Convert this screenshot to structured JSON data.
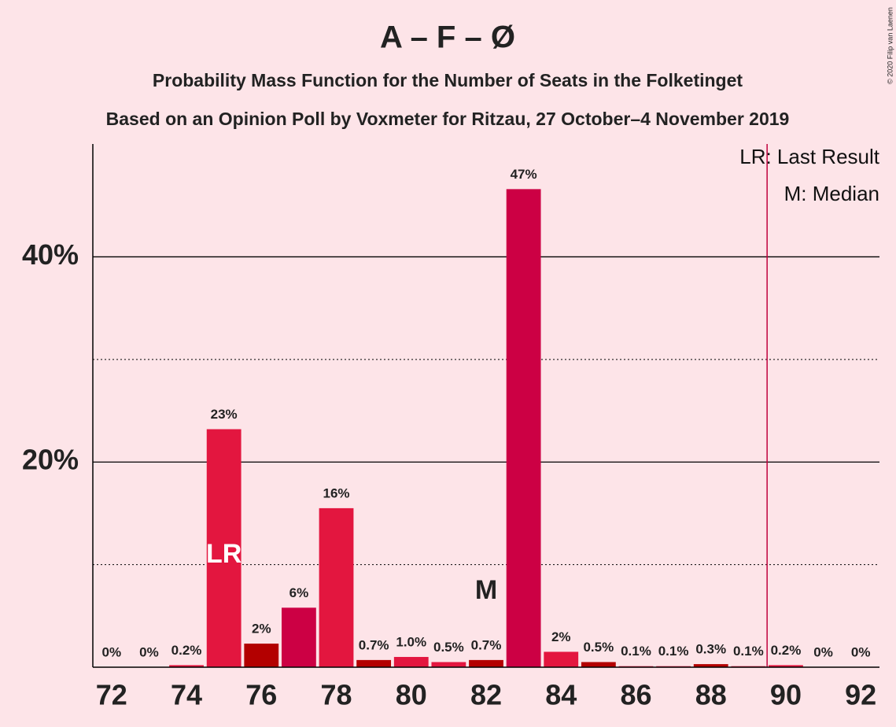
{
  "chart_data": {
    "type": "bar",
    "title": "A – F – Ø",
    "subtitle": "Probability Mass Function for the Number of Seats in the Folketinget",
    "subtitle2": "Based on an Opinion Poll by Voxmeter for Ritzau, 27 October–4 November 2019",
    "copyright": "© 2020 Filip van Laenen",
    "x": [
      72,
      73,
      74,
      75,
      76,
      77,
      78,
      79,
      80,
      81,
      82,
      83,
      84,
      85,
      86,
      87,
      88,
      89,
      90,
      91,
      92
    ],
    "values": [
      0,
      0,
      0.2,
      23.2,
      2.3,
      5.8,
      15.5,
      0.7,
      1.0,
      0.5,
      0.7,
      46.6,
      1.5,
      0.5,
      0.1,
      0.1,
      0.3,
      0.1,
      0.2,
      0,
      0
    ],
    "value_labels": [
      "0%",
      "0%",
      "0.2%",
      "23%",
      "2%",
      "6%",
      "16%",
      "0.7%",
      "1.0%",
      "0.5%",
      "0.7%",
      "47%",
      "2%",
      "0.5%",
      "0.1%",
      "0.1%",
      "0.3%",
      "0.1%",
      "0.2%",
      "0%",
      "0%"
    ],
    "colors": [
      "#e3163f",
      "#e3163f",
      "#e3163f",
      "#e3163f",
      "#b30000",
      "#cc0044",
      "#e3163f",
      "#b30000",
      "#e3163f",
      "#e3163f",
      "#b30000",
      "#cc0044",
      "#e3163f",
      "#b30000",
      "#e3163f",
      "#e3163f",
      "#b30000",
      "#e3163f",
      "#e3163f",
      "#e3163f",
      "#e3163f"
    ],
    "xlim": [
      71.5,
      92.5
    ],
    "xticks": [
      72,
      74,
      76,
      78,
      80,
      82,
      84,
      86,
      88,
      90,
      92
    ],
    "ylim": [
      0,
      51
    ],
    "yticks": [
      {
        "value": 20,
        "label": "20%"
      },
      {
        "value": 40,
        "label": "40%"
      }
    ],
    "minor_grid": [
      10,
      30
    ],
    "majority_line": 89.5,
    "annotations": [
      {
        "text": "LR",
        "x": 75
      },
      {
        "text": "M",
        "x": 82
      }
    ],
    "legend": [
      "LR: Last Result",
      "M: Median"
    ]
  }
}
